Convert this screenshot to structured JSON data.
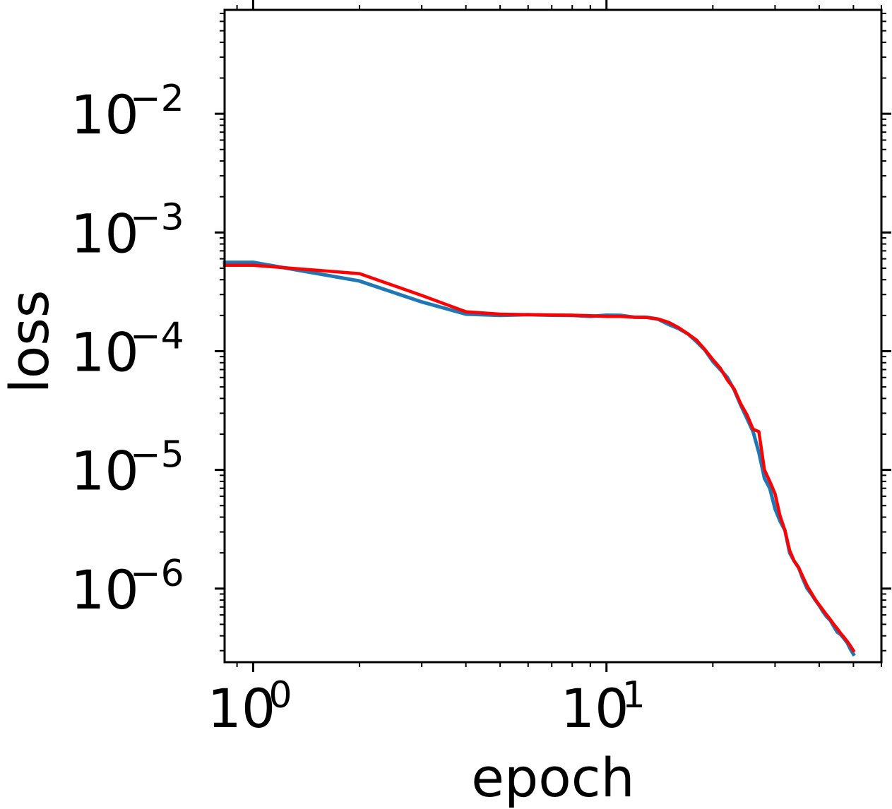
{
  "chart_data": {
    "type": "line",
    "xlabel": "epoch",
    "ylabel": "loss",
    "xscale": "log",
    "yscale": "log",
    "xlim": [
      0.83,
      60
    ],
    "ylim": [
      2.4e-07,
      0.075
    ],
    "grid": false,
    "x_ticks": [
      {
        "value": 1,
        "base": "10",
        "exp": "0"
      },
      {
        "value": 10,
        "base": "10",
        "exp": "1"
      }
    ],
    "y_ticks": [
      {
        "value": 1e-06,
        "base": "10",
        "exp": "−6"
      },
      {
        "value": 1e-05,
        "base": "10",
        "exp": "−5"
      },
      {
        "value": 0.0001,
        "base": "10",
        "exp": "−4"
      },
      {
        "value": 0.001,
        "base": "10",
        "exp": "−3"
      },
      {
        "value": 0.01,
        "base": "10",
        "exp": "−2"
      }
    ],
    "series": [
      {
        "color": "#1f77b4",
        "x": [
          0.83,
          1,
          2,
          3,
          4,
          5,
          6,
          7,
          8,
          9,
          10,
          11,
          12,
          13,
          14,
          15,
          16,
          17,
          18,
          19,
          20,
          21,
          22,
          23,
          24,
          25,
          26,
          27,
          28,
          29,
          30,
          31,
          32,
          33,
          34,
          35,
          36,
          37,
          38,
          39,
          40,
          41,
          42,
          43,
          44,
          45,
          46,
          47,
          48,
          49,
          50
        ],
        "y": [
          0.00056,
          0.00056,
          0.00039,
          0.00026,
          0.000205,
          0.0002,
          0.000203,
          0.000201,
          0.0002,
          0.000196,
          0.000201,
          0.0002,
          0.000193,
          0.000193,
          0.000186,
          0.000168,
          0.000155,
          0.00014,
          0.00012,
          0.000102,
          8.2e-05,
          7e-05,
          6e-05,
          4.7e-05,
          3.5e-05,
          2.7e-05,
          2.1e-05,
          1.4e-05,
          8.5e-06,
          7e-06,
          4.7e-06,
          3.7e-06,
          3.1e-06,
          2e-06,
          1.7e-06,
          1.5e-06,
          1.2e-06,
          1e-06,
          9e-07,
          8e-07,
          7.2e-07,
          6.4e-07,
          5.8e-07,
          5.4e-07,
          4.8e-07,
          4.3e-07,
          4.1e-07,
          3.8e-07,
          3.5e-07,
          3.1e-07,
          2.8e-07
        ]
      },
      {
        "color": "#ff0000",
        "x": [
          0.83,
          1,
          2,
          3,
          4,
          5,
          6,
          7,
          8,
          9,
          10,
          11,
          12,
          13,
          14,
          15,
          16,
          17,
          18,
          19,
          20,
          21,
          22,
          23,
          24,
          25,
          26,
          27,
          28,
          29,
          30,
          31,
          32,
          33,
          34,
          35,
          36,
          37,
          38,
          39,
          40,
          41,
          42,
          43,
          44,
          45,
          46,
          47,
          48,
          49,
          50
        ],
        "y": [
          0.00053,
          0.00053,
          0.00045,
          0.000295,
          0.000215,
          0.000205,
          0.000203,
          0.000202,
          0.000201,
          0.000199,
          0.000196,
          0.000196,
          0.000193,
          0.000192,
          0.000187,
          0.000175,
          0.000158,
          0.00014,
          0.000124,
          0.000103,
          8.5e-05,
          7.2e-05,
          5.7e-05,
          4.8e-05,
          3.6e-05,
          2.9e-05,
          2.2e-05,
          2.1e-05,
          1e-05,
          8e-06,
          6.3e-06,
          4.1e-06,
          3.1e-06,
          2.1e-06,
          1.7e-06,
          1.5e-06,
          1.25e-06,
          1.05e-06,
          9.2e-07,
          8.1e-07,
          7.3e-07,
          6.6e-07,
          6e-07,
          5.5e-07,
          5e-07,
          4.6e-07,
          4.2e-07,
          3.9e-07,
          3.6e-07,
          3.3e-07,
          3e-07
        ]
      }
    ]
  }
}
